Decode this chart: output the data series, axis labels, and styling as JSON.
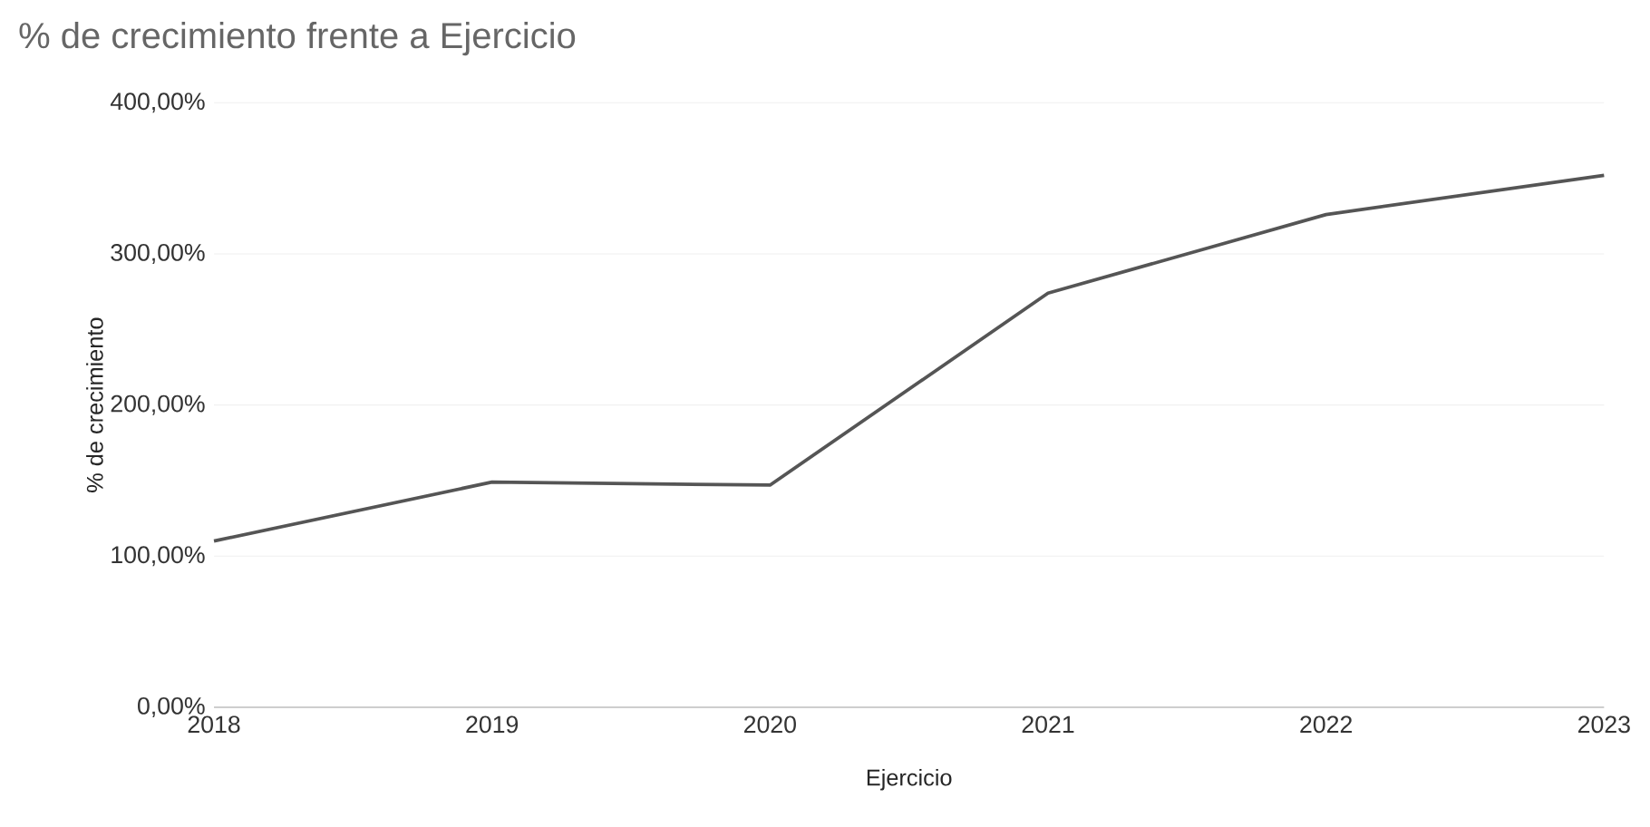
{
  "chart_data": {
    "type": "line",
    "title": "% de crecimiento frente a Ejercicio",
    "xlabel": "Ejercicio",
    "ylabel": "% de crecimiento",
    "x": [
      2018,
      2019,
      2020,
      2021,
      2022,
      2023
    ],
    "series": [
      {
        "color": "#555555",
        "values": [
          110,
          149,
          147,
          274,
          326,
          352
        ]
      }
    ],
    "xlim": [
      2018,
      2023
    ],
    "xticks": [
      2018,
      2019,
      2020,
      2021,
      2022,
      2023
    ],
    "ylim": [
      0,
      400
    ],
    "yticks": [
      {
        "value": 0,
        "label": "0,00%"
      },
      {
        "value": 100,
        "label": "100,00%"
      },
      {
        "value": 200,
        "label": "200,00%"
      },
      {
        "value": 300,
        "label": "300,00%"
      },
      {
        "value": 400,
        "label": "400,00%"
      }
    ],
    "grid": "y",
    "marker": "none",
    "line_style": "solid"
  }
}
